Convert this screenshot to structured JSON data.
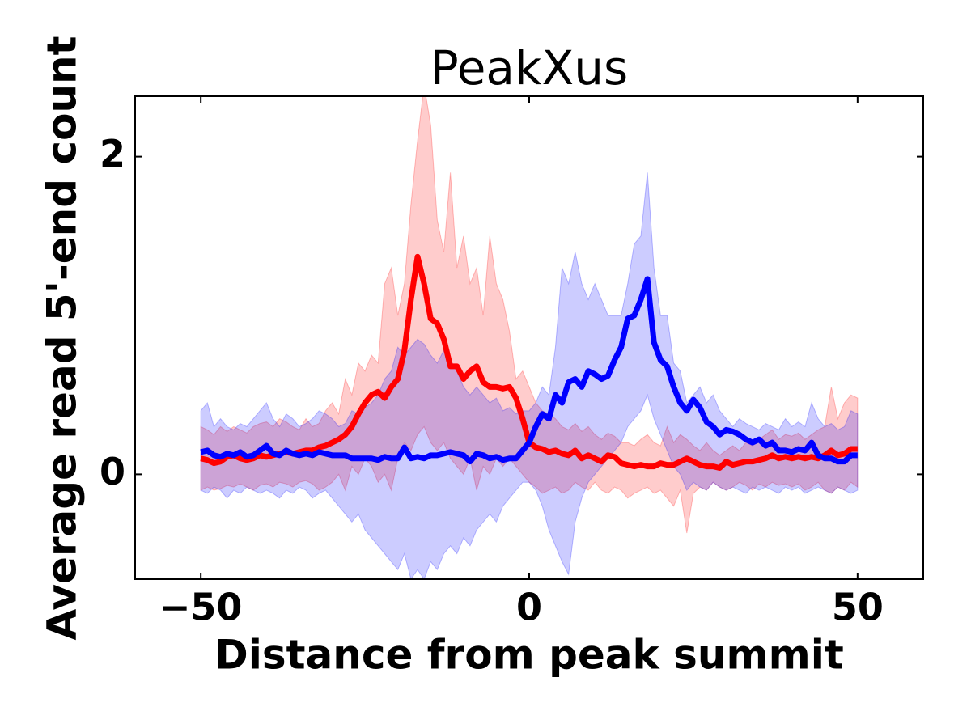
{
  "chart_data": {
    "type": "line",
    "title": "PeakXus",
    "x_label": "Distance from peak summit",
    "y_label": "Average read 5'-end count",
    "xlim": [
      -60,
      60
    ],
    "ylim": [
      -0.66,
      2.38
    ],
    "xticks": [
      {
        "value": -50,
        "label": "−50"
      },
      0,
      50
    ],
    "yticks": [
      0,
      2
    ],
    "x": [
      -50,
      -49,
      -48,
      -47,
      -46,
      -45,
      -44,
      -43,
      -42,
      -41,
      -40,
      -39,
      -38,
      -37,
      -36,
      -35,
      -34,
      -33,
      -32,
      -31,
      -30,
      -29,
      -28,
      -27,
      -26,
      -25,
      -24,
      -23,
      -22,
      -21,
      -20,
      -19,
      -18,
      -17,
      -16,
      -15,
      -14,
      -13,
      -12,
      -11,
      -10,
      -9,
      -8,
      -7,
      -6,
      -5,
      -4,
      -3,
      -2,
      -1,
      0,
      1,
      2,
      3,
      4,
      5,
      6,
      7,
      8,
      9,
      10,
      11,
      12,
      13,
      14,
      15,
      16,
      17,
      18,
      19,
      20,
      21,
      22,
      23,
      24,
      25,
      26,
      27,
      28,
      29,
      30,
      31,
      32,
      33,
      34,
      35,
      36,
      37,
      38,
      39,
      40,
      41,
      42,
      43,
      44,
      45,
      46,
      47,
      48,
      49,
      50
    ],
    "series": [
      {
        "color": "#ff0000",
        "values": [
          0.1,
          0.09,
          0.07,
          0.08,
          0.11,
          0.12,
          0.1,
          0.09,
          0.1,
          0.12,
          0.11,
          0.12,
          0.13,
          0.14,
          0.13,
          0.14,
          0.15,
          0.15,
          0.17,
          0.18,
          0.2,
          0.22,
          0.25,
          0.3,
          0.38,
          0.45,
          0.5,
          0.52,
          0.48,
          0.55,
          0.6,
          0.78,
          1.1,
          1.37,
          1.2,
          0.98,
          0.95,
          0.85,
          0.68,
          0.68,
          0.6,
          0.65,
          0.68,
          0.58,
          0.55,
          0.55,
          0.54,
          0.55,
          0.48,
          0.35,
          0.2,
          0.17,
          0.16,
          0.14,
          0.15,
          0.13,
          0.12,
          0.15,
          0.1,
          0.12,
          0.1,
          0.08,
          0.12,
          0.11,
          0.07,
          0.06,
          0.05,
          0.06,
          0.05,
          0.05,
          0.07,
          0.06,
          0.06,
          0.08,
          0.1,
          0.08,
          0.06,
          0.05,
          0.05,
          0.04,
          0.08,
          0.06,
          0.07,
          0.08,
          0.08,
          0.09,
          0.1,
          0.12,
          0.1,
          0.11,
          0.1,
          0.11,
          0.1,
          0.11,
          0.1,
          0.12,
          0.15,
          0.12,
          0.13,
          0.16,
          0.16
        ],
        "upper": [
          0.3,
          0.28,
          0.25,
          0.3,
          0.27,
          0.3,
          0.28,
          0.26,
          0.3,
          0.32,
          0.33,
          0.3,
          0.35,
          0.33,
          0.3,
          0.28,
          0.35,
          0.3,
          0.32,
          0.4,
          0.45,
          0.38,
          0.6,
          0.5,
          0.7,
          0.65,
          0.75,
          0.7,
          1.2,
          1.3,
          1.0,
          1.2,
          1.7,
          2.1,
          2.45,
          2.2,
          1.6,
          1.4,
          1.9,
          1.3,
          1.5,
          1.2,
          1.3,
          1.0,
          1.5,
          1.2,
          1.1,
          0.9,
          0.6,
          0.65,
          0.55,
          0.45,
          0.4,
          0.38,
          0.35,
          0.3,
          0.28,
          0.32,
          0.27,
          0.3,
          0.25,
          0.22,
          0.26,
          0.24,
          0.2,
          0.2,
          0.18,
          0.22,
          0.25,
          0.2,
          0.18,
          0.3,
          0.2,
          0.25,
          0.22,
          0.18,
          0.15,
          0.2,
          0.15,
          0.12,
          0.15,
          0.18,
          0.15,
          0.2,
          0.18,
          0.22,
          0.25,
          0.28,
          0.22,
          0.25,
          0.24,
          0.26,
          0.22,
          0.25,
          0.28,
          0.3,
          0.55,
          0.35,
          0.45,
          0.5,
          0.48
        ],
        "lower": [
          -0.1,
          -0.08,
          -0.1,
          -0.09,
          -0.07,
          -0.08,
          -0.06,
          -0.08,
          -0.1,
          -0.07,
          -0.06,
          -0.08,
          -0.05,
          -0.06,
          -0.08,
          -0.05,
          -0.04,
          -0.06,
          -0.1,
          -0.08,
          -0.05,
          0.0,
          -0.1,
          0.05,
          0.0,
          0.1,
          0.05,
          -0.05,
          0.0,
          -0.1,
          0.1,
          0.2,
          0.15,
          0.25,
          0.3,
          0.2,
          0.15,
          0.2,
          0.1,
          0.05,
          0.0,
          0.1,
          -0.1,
          0.05,
          0.0,
          0.1,
          0.05,
          0.1,
          0.05,
          0.0,
          -0.05,
          -0.08,
          -0.12,
          -0.1,
          -0.08,
          -0.12,
          -0.1,
          -0.05,
          -0.08,
          -0.1,
          -0.05,
          -0.1,
          -0.12,
          -0.08,
          -0.1,
          -0.15,
          -0.12,
          -0.1,
          -0.08,
          -0.12,
          -0.1,
          -0.15,
          -0.2,
          -0.1,
          -0.37,
          -0.12,
          -0.08,
          -0.1,
          -0.05,
          -0.08,
          -0.1,
          -0.08,
          -0.05,
          -0.07,
          -0.1,
          -0.06,
          -0.08,
          -0.05,
          -0.07,
          -0.06,
          -0.08,
          -0.06,
          -0.1,
          -0.08,
          -0.05,
          -0.1,
          -0.12,
          -0.08,
          -0.1,
          -0.05,
          -0.08
        ]
      },
      {
        "color": "#0000ff",
        "values": [
          0.14,
          0.15,
          0.12,
          0.11,
          0.13,
          0.12,
          0.14,
          0.11,
          0.12,
          0.15,
          0.18,
          0.13,
          0.12,
          0.15,
          0.13,
          0.12,
          0.13,
          0.12,
          0.14,
          0.13,
          0.12,
          0.12,
          0.12,
          0.1,
          0.1,
          0.1,
          0.1,
          0.09,
          0.11,
          0.1,
          0.1,
          0.17,
          0.1,
          0.11,
          0.1,
          0.12,
          0.12,
          0.13,
          0.14,
          0.13,
          0.12,
          0.08,
          0.13,
          0.12,
          0.1,
          0.11,
          0.09,
          0.1,
          0.1,
          0.15,
          0.2,
          0.3,
          0.38,
          0.35,
          0.5,
          0.45,
          0.58,
          0.6,
          0.55,
          0.65,
          0.63,
          0.6,
          0.62,
          0.72,
          0.8,
          0.98,
          1.0,
          1.1,
          1.23,
          0.83,
          0.72,
          0.68,
          0.55,
          0.45,
          0.4,
          0.47,
          0.42,
          0.33,
          0.3,
          0.25,
          0.28,
          0.27,
          0.25,
          0.22,
          0.2,
          0.22,
          0.18,
          0.2,
          0.15,
          0.15,
          0.14,
          0.16,
          0.15,
          0.2,
          0.12,
          0.1,
          0.1,
          0.08,
          0.08,
          0.12,
          0.12
        ],
        "upper": [
          0.4,
          0.45,
          0.3,
          0.35,
          0.3,
          0.28,
          0.32,
          0.3,
          0.35,
          0.4,
          0.45,
          0.35,
          0.3,
          0.38,
          0.35,
          0.3,
          0.32,
          0.35,
          0.4,
          0.38,
          0.35,
          0.3,
          0.32,
          0.4,
          0.38,
          0.42,
          0.45,
          0.5,
          0.6,
          0.65,
          0.8,
          0.75,
          0.8,
          0.85,
          0.82,
          0.75,
          0.7,
          0.78,
          0.72,
          0.65,
          0.55,
          0.5,
          0.55,
          0.5,
          0.45,
          0.48,
          0.4,
          0.42,
          0.38,
          0.4,
          0.4,
          0.45,
          0.55,
          0.5,
          0.8,
          1.3,
          1.2,
          1.4,
          1.2,
          1.1,
          1.2,
          1.1,
          1.0,
          1.0,
          1.0,
          1.2,
          1.45,
          1.5,
          1.9,
          1.3,
          1.0,
          1.0,
          0.7,
          0.65,
          0.45,
          0.5,
          0.55,
          0.45,
          0.5,
          0.4,
          0.35,
          0.3,
          0.35,
          0.32,
          0.3,
          0.28,
          0.32,
          0.3,
          0.28,
          0.35,
          0.3,
          0.33,
          0.3,
          0.45,
          0.35,
          0.3,
          0.32,
          0.28,
          0.3,
          0.4,
          0.38
        ],
        "lower": [
          -0.1,
          -0.12,
          -0.08,
          -0.1,
          -0.15,
          -0.1,
          -0.12,
          -0.08,
          -0.1,
          -0.12,
          -0.1,
          -0.12,
          -0.15,
          -0.1,
          -0.12,
          -0.08,
          -0.1,
          -0.15,
          -0.12,
          -0.1,
          -0.15,
          -0.2,
          -0.25,
          -0.3,
          -0.25,
          -0.35,
          -0.4,
          -0.45,
          -0.5,
          -0.55,
          -0.6,
          -0.5,
          -0.66,
          -0.6,
          -0.66,
          -0.55,
          -0.6,
          -0.5,
          -0.45,
          -0.5,
          -0.4,
          -0.45,
          -0.35,
          -0.3,
          -0.25,
          -0.3,
          -0.2,
          -0.15,
          -0.1,
          -0.05,
          -0.05,
          -0.1,
          -0.2,
          -0.35,
          -0.45,
          -0.55,
          -0.63,
          -0.3,
          -0.15,
          -0.05,
          0.0,
          0.05,
          0.1,
          0.15,
          0.2,
          0.3,
          0.35,
          0.4,
          0.5,
          0.35,
          0.25,
          0.15,
          0.05,
          0.0,
          -0.1,
          -0.05,
          -0.08,
          -0.1,
          -0.05,
          -0.08,
          -0.1,
          -0.08,
          -0.1,
          -0.12,
          -0.08,
          -0.1,
          -0.08,
          -0.1,
          -0.12,
          -0.08,
          -0.1,
          -0.08,
          -0.12,
          -0.1,
          -0.08,
          -0.1,
          -0.12,
          -0.08,
          -0.1,
          -0.12,
          -0.1
        ]
      }
    ]
  }
}
